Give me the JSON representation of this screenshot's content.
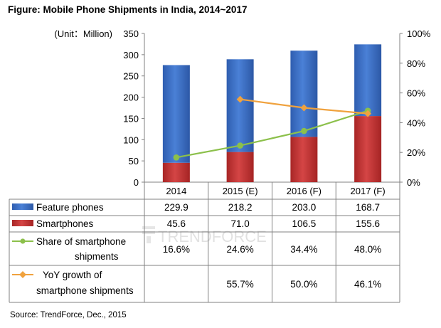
{
  "title": "Figure: Mobile Phone Shipments in India, 2014~2017",
  "source": "Source: TrendForce, Dec., 2015",
  "watermark": "TRENDFORCE",
  "chart_data": {
    "type": "bar",
    "stacked": true,
    "title": "Figure: Mobile Phone Shipments in India, 2014~2017",
    "unit_label": "(Unit：Million)",
    "categories": [
      "2014",
      "2015 (E)",
      "2016 (F)",
      "2017 (F)"
    ],
    "y_left": {
      "min": 0,
      "max": 350,
      "ticks": [
        "0",
        "50",
        "100",
        "150",
        "200",
        "250",
        "300",
        "350"
      ]
    },
    "y_right": {
      "min": 0,
      "max": 100,
      "ticks": [
        "0%",
        "20%",
        "40%",
        "60%",
        "80%",
        "100%"
      ]
    },
    "grid": false,
    "legend": "data-table",
    "series": [
      {
        "name": "Feature phones",
        "type": "bar",
        "axis": "left",
        "color": "#3d6fc4",
        "values": [
          229.9,
          218.2,
          203.0,
          168.7
        ],
        "labels": [
          "229.9",
          "218.2",
          "203.0",
          "168.7"
        ]
      },
      {
        "name": "Smartphones",
        "type": "bar",
        "axis": "left",
        "color": "#c33a3a",
        "values": [
          45.6,
          71.0,
          106.5,
          155.6
        ],
        "labels": [
          "45.6",
          "71.0",
          "106.5",
          "155.6"
        ]
      },
      {
        "name": "Share of smartphone shipments",
        "type": "line",
        "axis": "right",
        "color": "#8cc04b",
        "values": [
          16.6,
          24.6,
          34.4,
          48.0
        ],
        "labels": [
          "16.6%",
          "24.6%",
          "34.4%",
          "48.0%"
        ]
      },
      {
        "name": "YoY growth of smartphone shipments",
        "type": "line",
        "axis": "right",
        "color": "#f0a23e",
        "values": [
          null,
          55.7,
          50.0,
          46.1
        ],
        "labels": [
          "",
          "55.7%",
          "50.0%",
          "46.1%"
        ]
      }
    ]
  }
}
